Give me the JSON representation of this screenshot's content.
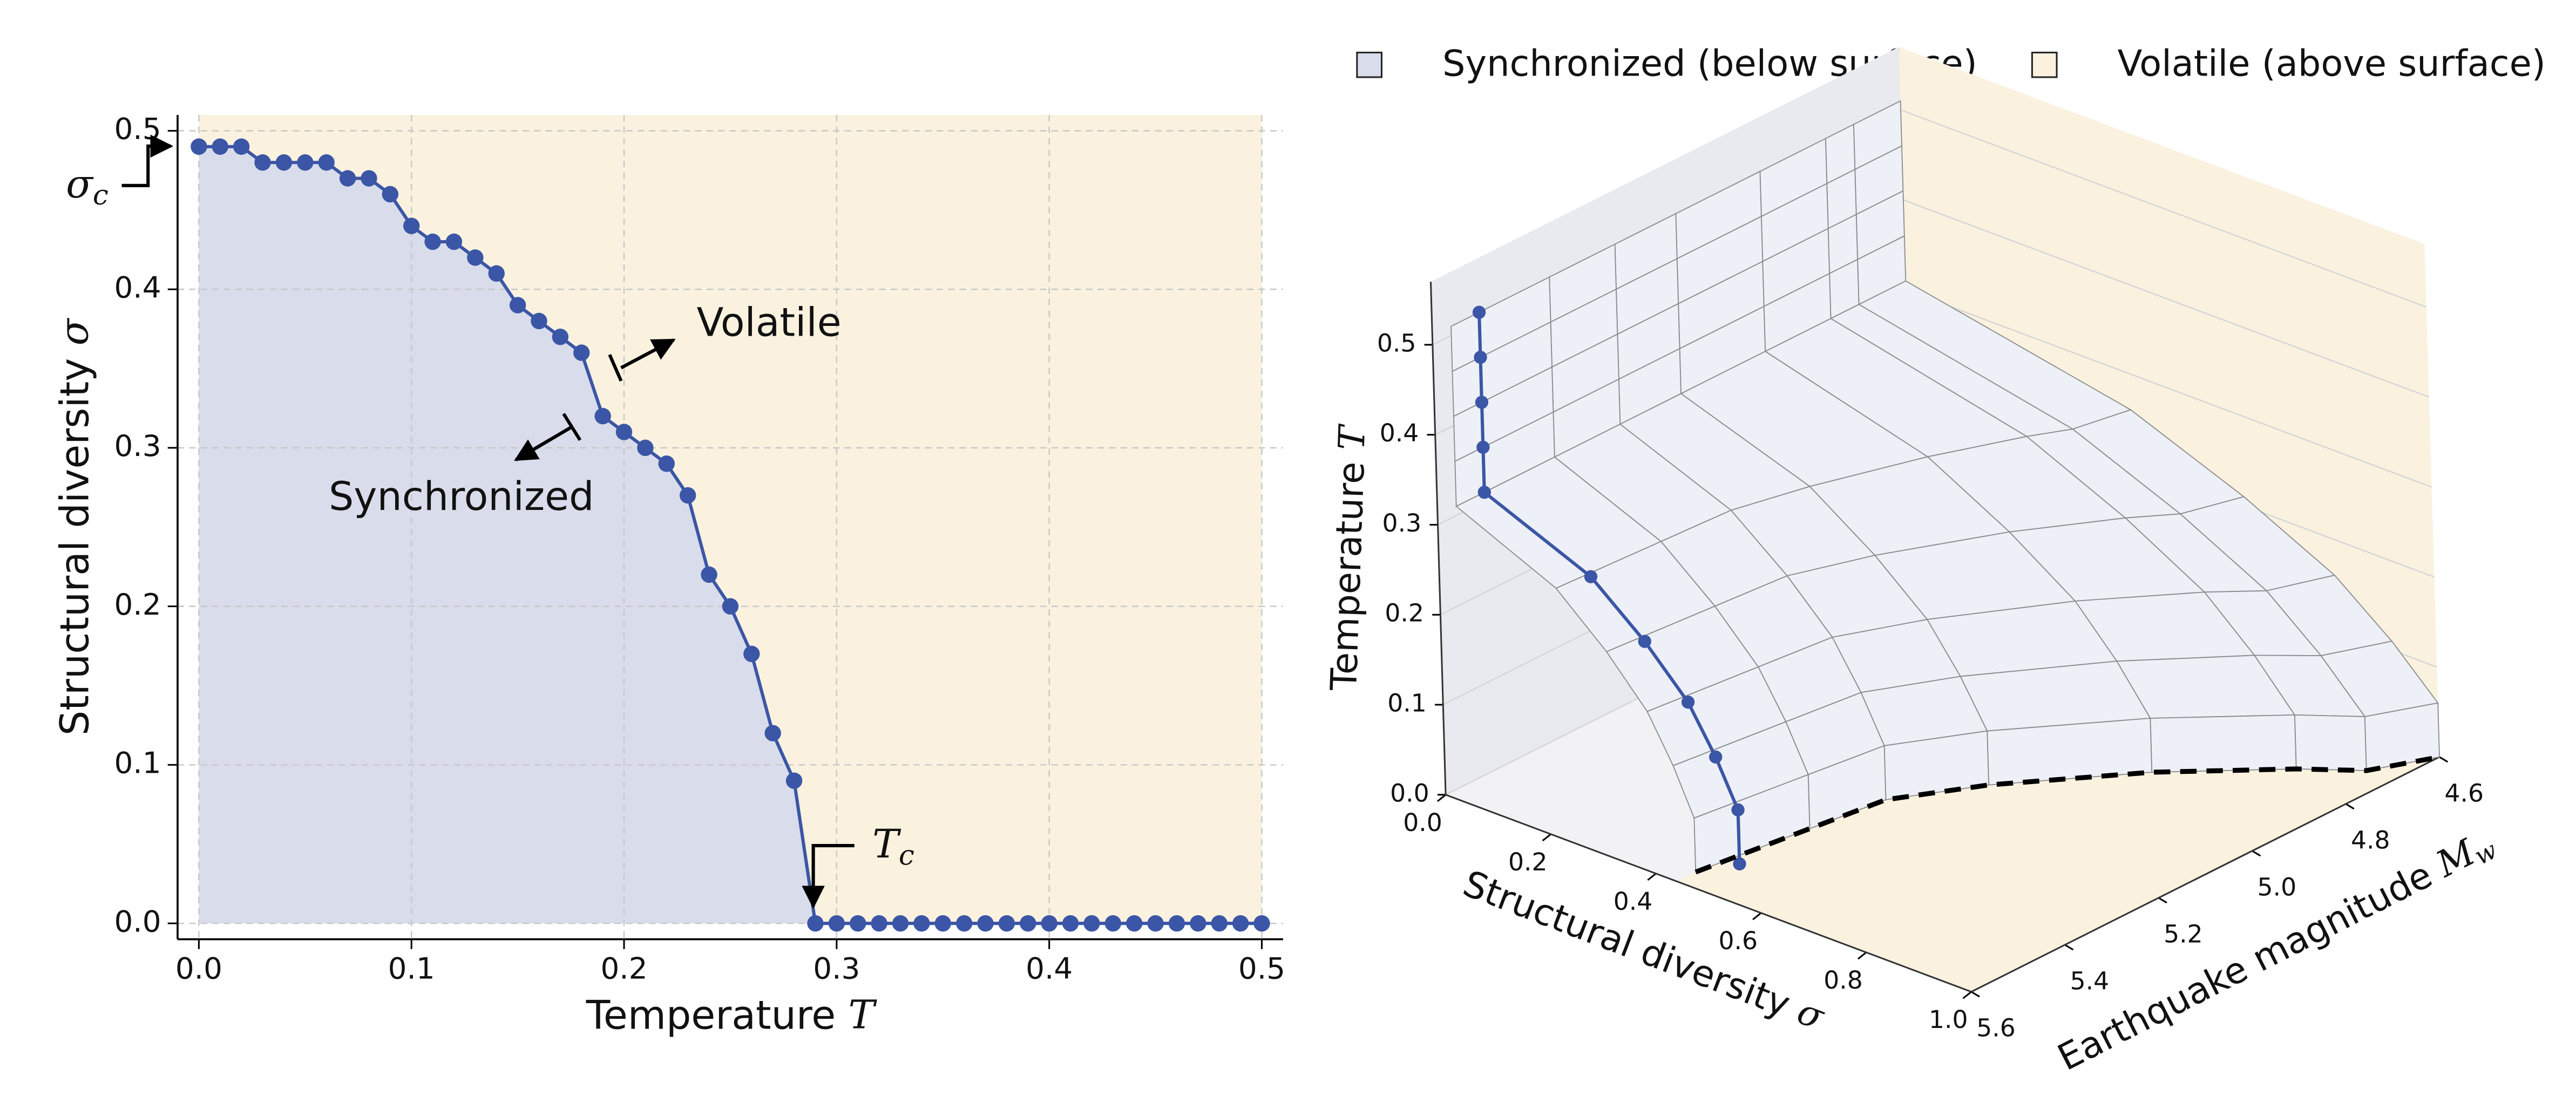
{
  "chart_data": [
    {
      "type": "line",
      "xlabel": {
        "text": "Temperature",
        "symbol": "T"
      },
      "ylabel": {
        "text": "Structural diversity",
        "symbol": "σ"
      },
      "x": [
        0,
        0.01,
        0.02,
        0.03,
        0.04,
        0.05,
        0.06,
        0.07,
        0.08,
        0.09,
        0.1,
        0.11,
        0.12,
        0.13,
        0.14,
        0.15,
        0.16,
        0.17,
        0.18,
        0.19,
        0.2,
        0.21,
        0.22,
        0.23,
        0.24,
        0.25,
        0.26,
        0.27,
        0.28,
        0.29,
        0.3,
        0.31,
        0.32,
        0.33,
        0.34,
        0.35,
        0.36,
        0.37,
        0.38,
        0.39,
        0.4,
        0.41,
        0.42,
        0.43,
        0.44,
        0.45,
        0.46,
        0.47,
        0.48,
        0.49,
        0.5
      ],
      "series": [
        {
          "color": "#3b56a6",
          "values": [
            0.49,
            0.49,
            0.49,
            0.48,
            0.48,
            0.48,
            0.48,
            0.47,
            0.47,
            0.46,
            0.44,
            0.43,
            0.43,
            0.42,
            0.41,
            0.39,
            0.38,
            0.37,
            0.36,
            0.32,
            0.31,
            0.3,
            0.29,
            0.27,
            0.22,
            0.2,
            0.17,
            0.12,
            0.09,
            0,
            0,
            0,
            0,
            0,
            0,
            0,
            0,
            0,
            0,
            0,
            0,
            0,
            0,
            0,
            0,
            0,
            0,
            0,
            0,
            0,
            0
          ]
        }
      ],
      "below_color": "#d9dcea",
      "above_color": "#faf2df",
      "xlim": [
        -0.01,
        0.51
      ],
      "xticks": [
        {
          "value": 0,
          "label": "0.0"
        },
        0.1,
        0.2,
        0.3,
        0.4,
        0.5
      ],
      "ylim": [
        -0.01,
        0.51
      ],
      "yticks": [
        {
          "value": 0,
          "label": "0.0"
        },
        0.1,
        0.2,
        0.3,
        0.4,
        0.5
      ],
      "grid": true,
      "annotations": [
        {
          "text": "σ",
          "subscript": "c"
        },
        {
          "text": "T",
          "subscript": "c"
        },
        {
          "text": "Volatile"
        },
        {
          "text": "Synchronized"
        }
      ]
    },
    {
      "type": "surface3d",
      "legend": [
        {
          "name": "Synchronized (below surface)",
          "color": "#d9dcea"
        },
        {
          "name": "Volatile (above surface)",
          "color": "#faf2df"
        }
      ],
      "xlabel": {
        "text": "Structural diversity",
        "symbol": "σ"
      },
      "ylabel": {
        "text": "Earthquake magnitude",
        "symbol": "M",
        "subscript": "w"
      },
      "zlabel": {
        "text": "Temperature",
        "symbol": "T"
      },
      "xlim": [
        0,
        1
      ],
      "xticks": [
        {
          "value": 0,
          "label": "0.0"
        },
        0.2,
        0.4,
        0.6,
        0.8,
        {
          "value": 1,
          "label": "1.0"
        }
      ],
      "ylim": [
        4.6,
        5.6
      ],
      "yticks": [
        4.6,
        4.8,
        {
          "value": 5,
          "label": "5.0"
        },
        5.2,
        5.4,
        5.6
      ],
      "zlim": [
        0,
        0.57
      ],
      "zticks": [
        {
          "value": 0,
          "label": "0.0"
        },
        0.1,
        0.2,
        0.3,
        0.4,
        0.5
      ],
      "series": [
        {
          "color": "#3b56a6",
          "style": "solid",
          "x": [
            0,
            0,
            0,
            0,
            0,
            0.2,
            0.3,
            0.38,
            0.43,
            0.47,
            0.47
          ],
          "y": [
            5.5,
            5.5,
            5.5,
            5.5,
            5.5,
            5.5,
            5.5,
            5.5,
            5.5,
            5.5,
            5.5
          ],
          "z": [
            0.51,
            0.46,
            0.41,
            0.36,
            0.31,
            0.26,
            0.21,
            0.16,
            0.11,
            0.06,
            0
          ]
        },
        {
          "color": "#000000",
          "style": "dashed",
          "x": [
            0.44,
            0.47,
            0.49,
            0.57,
            0.72,
            0.87,
            0.95,
            1.0
          ],
          "y": [
            5.56,
            5.35,
            5.21,
            5.08,
            4.9,
            4.76,
            4.7,
            4.6
          ],
          "z": [
            0,
            0,
            0,
            0,
            0,
            0,
            0,
            0
          ]
        }
      ],
      "surface_color": "#eef0f7"
    }
  ]
}
